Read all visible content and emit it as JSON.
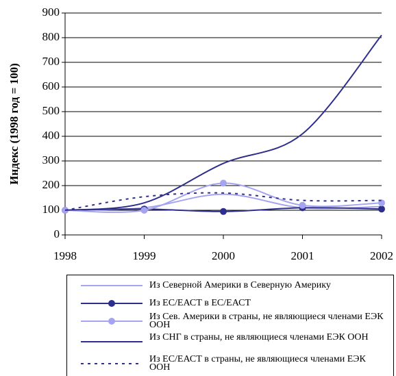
{
  "chart_data": {
    "type": "line",
    "y_label": "Индекс (1998 год = 100)",
    "x": [
      1998,
      1999,
      2000,
      2001,
      2002
    ],
    "xlim": [
      1998,
      2002
    ],
    "xticks": [
      1998,
      1999,
      2000,
      2001,
      2002
    ],
    "ylim": [
      0,
      900
    ],
    "yticks": [
      0,
      100,
      200,
      300,
      400,
      500,
      600,
      700,
      800,
      900
    ],
    "grid": true,
    "legend": "bottom",
    "series": [
      {
        "name": "Из Северной Америки в Северную Америку",
        "color": "#a4a4f0",
        "style": "solid",
        "marker": false,
        "values": [
          100,
          110,
          165,
          110,
          115
        ]
      },
      {
        "name": "Из ЕС/ЕАСТ в ЕС/ЕАСТ",
        "color": "#2e2e8c",
        "style": "solid",
        "marker": true,
        "values": [
          100,
          105,
          95,
          110,
          105
        ]
      },
      {
        "name": "Из Сев. Америки в страны, не являющиеся членами ЕЭК ООН",
        "color": "#a4a4f0",
        "style": "solid",
        "marker": true,
        "values": [
          100,
          100,
          210,
          120,
          130
        ]
      },
      {
        "name": "Из СНГ в страны, не являющиеся членами ЕЭК ООН",
        "color": "#2e2e8c",
        "style": "solid",
        "marker": false,
        "values": [
          100,
          130,
          290,
          410,
          810
        ]
      },
      {
        "name": "Из ЕС/ЕАСТ в страны, не являющиеся членами ЕЭК ООН",
        "color": "#2e2e8c",
        "style": "dotted",
        "marker": false,
        "values": [
          100,
          155,
          170,
          140,
          140
        ]
      }
    ]
  }
}
